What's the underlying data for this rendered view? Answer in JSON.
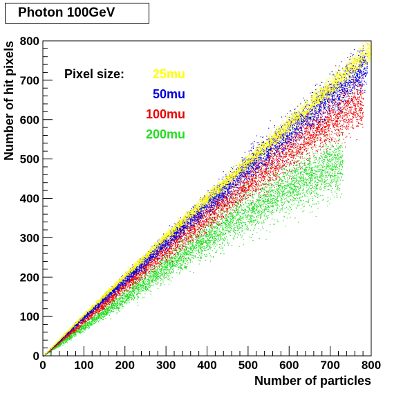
{
  "title": "Photon 100GeV",
  "chart_data": {
    "type": "scatter",
    "title": "Photon 100GeV",
    "xlabel": "Number of particles",
    "ylabel": "Number of hit pixels",
    "xlim": [
      0,
      800
    ],
    "ylim": [
      0,
      800
    ],
    "xticks": [
      0,
      100,
      200,
      300,
      400,
      500,
      600,
      700,
      800
    ],
    "yticks": [
      0,
      100,
      200,
      300,
      400,
      500,
      600,
      700,
      800
    ],
    "grid": false,
    "legend": {
      "header": "Pixel size:",
      "placement": "top-left"
    },
    "series": [
      {
        "name": "200mu",
        "color": "#22dd22",
        "trend": [
          [
            0,
            0
          ],
          [
            100,
            75
          ],
          [
            200,
            150
          ],
          [
            300,
            225
          ],
          [
            400,
            300
          ],
          [
            500,
            370
          ],
          [
            600,
            430
          ],
          [
            700,
            480
          ],
          [
            730,
            490
          ]
        ]
      },
      {
        "name": "100mu",
        "color": "#ee0000",
        "trend": [
          [
            0,
            0
          ],
          [
            100,
            90
          ],
          [
            200,
            180
          ],
          [
            300,
            270
          ],
          [
            400,
            355
          ],
          [
            500,
            440
          ],
          [
            600,
            525
          ],
          [
            700,
            600
          ],
          [
            780,
            650
          ]
        ]
      },
      {
        "name": "50mu",
        "color": "#0000dd",
        "trend": [
          [
            0,
            0
          ],
          [
            100,
            100
          ],
          [
            200,
            195
          ],
          [
            300,
            290
          ],
          [
            400,
            385
          ],
          [
            500,
            480
          ],
          [
            600,
            570
          ],
          [
            700,
            660
          ],
          [
            790,
            740
          ]
        ]
      },
      {
        "name": "25mu",
        "color": "#ffff00",
        "trend": [
          [
            0,
            0
          ],
          [
            100,
            105
          ],
          [
            200,
            205
          ],
          [
            300,
            305
          ],
          [
            400,
            400
          ],
          [
            500,
            495
          ],
          [
            600,
            590
          ],
          [
            700,
            685
          ],
          [
            800,
            780
          ]
        ]
      }
    ]
  }
}
